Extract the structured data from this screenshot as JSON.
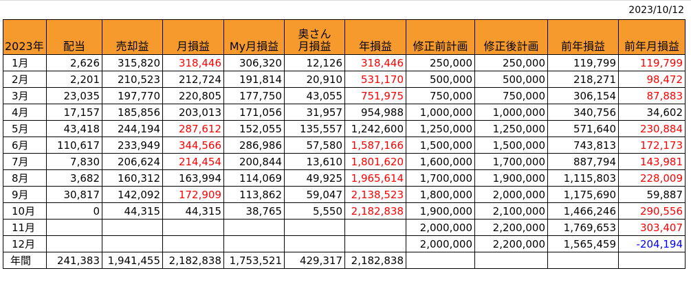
{
  "report_date": "2023/10/12",
  "headers": [
    "2023年",
    "配当",
    "売却益",
    "月損益",
    "My月損益",
    "奥さん\n月損益",
    "年損益",
    "修正前計画",
    "修正後計画",
    "前年損益",
    "前年月損益"
  ],
  "rows": [
    {
      "label": "1月",
      "cells": [
        {
          "v": "2,626"
        },
        {
          "v": "315,820"
        },
        {
          "v": "318,446",
          "c": "red"
        },
        {
          "v": "306,320"
        },
        {
          "v": "12,126"
        },
        {
          "v": "318,446",
          "c": "red"
        },
        {
          "v": "250,000"
        },
        {
          "v": "250,000"
        },
        {
          "v": "119,799"
        },
        {
          "v": "119,799",
          "c": "red"
        }
      ]
    },
    {
      "label": "2月",
      "cells": [
        {
          "v": "2,201"
        },
        {
          "v": "210,523"
        },
        {
          "v": "212,724"
        },
        {
          "v": "191,814"
        },
        {
          "v": "20,910"
        },
        {
          "v": "531,170",
          "c": "red"
        },
        {
          "v": "500,000"
        },
        {
          "v": "500,000"
        },
        {
          "v": "218,271"
        },
        {
          "v": "98,472",
          "c": "red"
        }
      ]
    },
    {
      "label": "3月",
      "cells": [
        {
          "v": "23,035"
        },
        {
          "v": "197,770"
        },
        {
          "v": "220,805"
        },
        {
          "v": "177,750"
        },
        {
          "v": "43,055"
        },
        {
          "v": "751,975",
          "c": "red"
        },
        {
          "v": "750,000"
        },
        {
          "v": "750,000"
        },
        {
          "v": "306,154"
        },
        {
          "v": "87,883",
          "c": "red"
        }
      ]
    },
    {
      "label": "4月",
      "cells": [
        {
          "v": "17,157"
        },
        {
          "v": "185,856"
        },
        {
          "v": "203,013"
        },
        {
          "v": "171,056"
        },
        {
          "v": "31,957"
        },
        {
          "v": "954,988"
        },
        {
          "v": "1,000,000"
        },
        {
          "v": "1,000,000"
        },
        {
          "v": "340,756"
        },
        {
          "v": "34,602"
        }
      ]
    },
    {
      "label": "5月",
      "cells": [
        {
          "v": "43,418"
        },
        {
          "v": "244,194"
        },
        {
          "v": "287,612",
          "c": "red"
        },
        {
          "v": "152,055"
        },
        {
          "v": "135,557"
        },
        {
          "v": "1,242,600"
        },
        {
          "v": "1,250,000"
        },
        {
          "v": "1,250,000"
        },
        {
          "v": "571,640"
        },
        {
          "v": "230,884",
          "c": "red"
        }
      ]
    },
    {
      "label": "6月",
      "cells": [
        {
          "v": "110,617"
        },
        {
          "v": "233,949"
        },
        {
          "v": "344,566",
          "c": "red"
        },
        {
          "v": "286,986"
        },
        {
          "v": "57,580"
        },
        {
          "v": "1,587,166",
          "c": "red"
        },
        {
          "v": "1,500,000"
        },
        {
          "v": "1,500,000"
        },
        {
          "v": "743,813"
        },
        {
          "v": "172,173",
          "c": "red"
        }
      ]
    },
    {
      "label": "7月",
      "cells": [
        {
          "v": "7,830"
        },
        {
          "v": "206,624"
        },
        {
          "v": "214,454",
          "c": "red"
        },
        {
          "v": "200,844"
        },
        {
          "v": "13,610"
        },
        {
          "v": "1,801,620",
          "c": "red"
        },
        {
          "v": "1,600,000"
        },
        {
          "v": "1,700,000"
        },
        {
          "v": "887,794"
        },
        {
          "v": "143,981",
          "c": "red"
        }
      ]
    },
    {
      "label": "8月",
      "cells": [
        {
          "v": "3,682"
        },
        {
          "v": "160,312"
        },
        {
          "v": "163,994"
        },
        {
          "v": "114,069"
        },
        {
          "v": "49,925"
        },
        {
          "v": "1,965,614",
          "c": "red"
        },
        {
          "v": "1,700,000"
        },
        {
          "v": "1,900,000"
        },
        {
          "v": "1,115,803"
        },
        {
          "v": "228,009",
          "c": "red"
        }
      ]
    },
    {
      "label": "9月",
      "cells": [
        {
          "v": "30,817"
        },
        {
          "v": "142,092"
        },
        {
          "v": "172,909",
          "c": "red"
        },
        {
          "v": "113,862"
        },
        {
          "v": "59,047"
        },
        {
          "v": "2,138,523",
          "c": "red"
        },
        {
          "v": "1,800,000"
        },
        {
          "v": "2,000,000"
        },
        {
          "v": "1,175,690"
        },
        {
          "v": "59,887"
        }
      ]
    },
    {
      "label": "10月",
      "cells": [
        {
          "v": "0"
        },
        {
          "v": "44,315"
        },
        {
          "v": "44,315"
        },
        {
          "v": "38,765"
        },
        {
          "v": "5,550"
        },
        {
          "v": "2,182,838",
          "c": "red"
        },
        {
          "v": "1,900,000"
        },
        {
          "v": "2,100,000"
        },
        {
          "v": "1,466,246"
        },
        {
          "v": "290,556",
          "c": "red"
        }
      ]
    },
    {
      "label": "11月",
      "cells": [
        {
          "v": ""
        },
        {
          "v": ""
        },
        {
          "v": ""
        },
        {
          "v": ""
        },
        {
          "v": ""
        },
        {
          "v": ""
        },
        {
          "v": "2,000,000"
        },
        {
          "v": "2,200,000"
        },
        {
          "v": "1,769,653"
        },
        {
          "v": "303,407",
          "c": "red"
        }
      ]
    },
    {
      "label": "12月",
      "cells": [
        {
          "v": ""
        },
        {
          "v": ""
        },
        {
          "v": ""
        },
        {
          "v": ""
        },
        {
          "v": ""
        },
        {
          "v": ""
        },
        {
          "v": "2,000,000"
        },
        {
          "v": "2,200,000"
        },
        {
          "v": "1,565,459"
        },
        {
          "v": "-204,194",
          "c": "blue"
        }
      ]
    },
    {
      "label": "年間",
      "total": true,
      "cells": [
        {
          "v": "241,383"
        },
        {
          "v": "1,941,455"
        },
        {
          "v": "2,182,838"
        },
        {
          "v": "1,753,521"
        },
        {
          "v": "429,317"
        },
        {
          "v": "2,182,838"
        },
        {
          "v": ""
        },
        {
          "v": ""
        },
        {
          "v": ""
        },
        {
          "v": ""
        }
      ]
    }
  ]
}
